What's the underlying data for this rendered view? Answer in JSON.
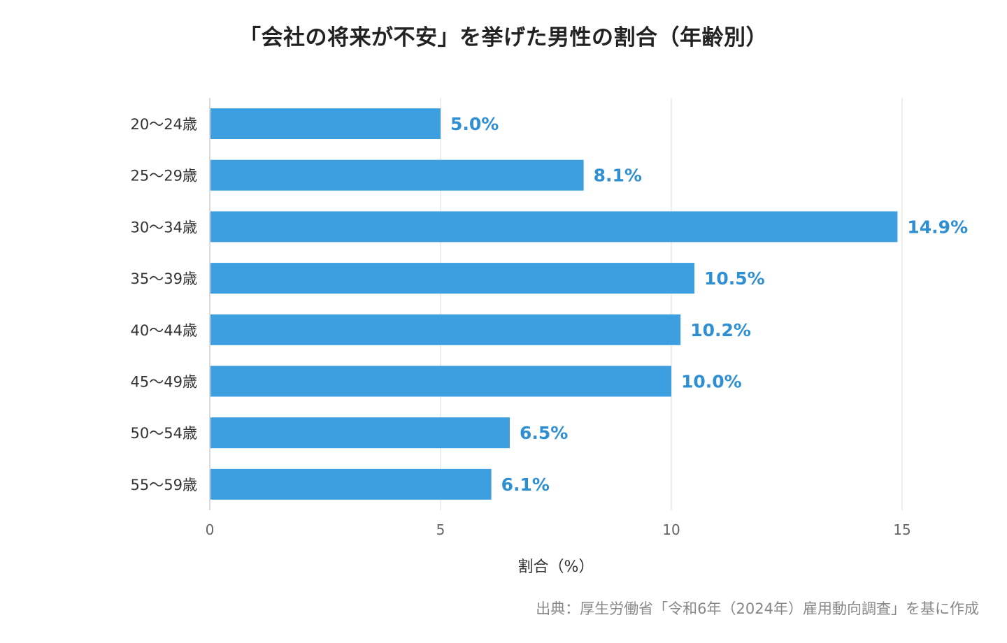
{
  "chart_data": {
    "type": "bar",
    "orientation": "horizontal",
    "title": "「会社の将来が不安」を挙げた男性の割合（年齢別）",
    "xlabel": "割合（%）",
    "ylabel": "",
    "categories": [
      "20〜24歳",
      "25〜29歳",
      "30〜34歳",
      "35〜39歳",
      "40〜44歳",
      "45〜49歳",
      "50〜54歳",
      "55〜59歳"
    ],
    "values": [
      5.0,
      8.1,
      14.9,
      10.5,
      10.2,
      10.0,
      6.5,
      6.1
    ],
    "value_labels": [
      "5.0%",
      "8.1%",
      "14.9%",
      "10.5%",
      "10.2%",
      "10.0%",
      "6.5%",
      "6.1%"
    ],
    "xlim": [
      0,
      15
    ],
    "xticks": [
      0,
      5,
      10,
      15
    ],
    "grid": true,
    "legend": "none",
    "bar_color": "#3d9fdf",
    "label_color": "#2f8fd3"
  },
  "source_note": "出典：厚生労働省「令和6年（2024年）雇用動向調査」を基に作成"
}
